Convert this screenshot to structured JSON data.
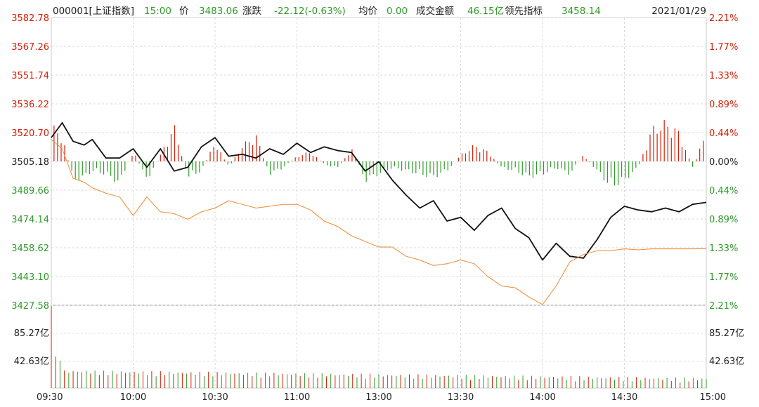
{
  "header": {
    "code": "000001[上证指数]",
    "time": "15:00",
    "price_label": "价",
    "price": "3483.06",
    "change_label": "涨跌",
    "change": "-22.12(-0.63%)",
    "avg_label": "均价",
    "avg": "0.00",
    "turnover_label": "成交金额",
    "turnover": "46.15亿",
    "lead_label": "领先指标",
    "lead": "3458.14",
    "date": "2021/01/29"
  },
  "chart_data": {
    "type": "line",
    "title": "000001[上证指数]",
    "prev_close": 3505.18,
    "ylim": [
      3427.58,
      3582.78
    ],
    "left_ticks": [
      "3582.78",
      "3567.26",
      "3551.74",
      "3536.22",
      "3520.70",
      "3505.18",
      "3489.66",
      "3474.14",
      "3458.62",
      "3443.10",
      "3427.58"
    ],
    "left_tick_colors": [
      "red",
      "red",
      "red",
      "red",
      "red",
      "black",
      "green",
      "green",
      "green",
      "green",
      "green"
    ],
    "right_ticks": [
      "2.21%",
      "1.77%",
      "1.33%",
      "0.89%",
      "0.44%",
      "0.00%",
      "0.44%",
      "0.89%",
      "1.33%",
      "1.77%",
      "2.21%"
    ],
    "right_tick_colors": [
      "red",
      "red",
      "red",
      "red",
      "red",
      "black",
      "green",
      "green",
      "green",
      "green",
      "green"
    ],
    "volume_ticks": [
      "85.27亿",
      "42.63亿"
    ],
    "volume_ylim": [
      0,
      127.9
    ],
    "time_labels": [
      "09:30",
      "10:00",
      "10:30",
      "11:00",
      "13:00",
      "13:30",
      "14:00",
      "14:30",
      "15:00"
    ],
    "series": [
      {
        "name": "价",
        "color": "#111111",
        "x": [
          0,
          4,
          8,
          12,
          15,
          20,
          25,
          30,
          35,
          40,
          45,
          50,
          55,
          60,
          65,
          70,
          75,
          80,
          85,
          90,
          95,
          100,
          105,
          110,
          115,
          120,
          125,
          130,
          135,
          140,
          145,
          150,
          155,
          160,
          165,
          170,
          175,
          180,
          185,
          190,
          195,
          200,
          205,
          210,
          215,
          220,
          225,
          230,
          235,
          240
        ],
        "y": [
          3518,
          3526,
          3516,
          3514,
          3517,
          3507,
          3507,
          3512,
          3502,
          3512,
          3500,
          3502,
          3513,
          3518,
          3508,
          3509,
          3507,
          3512,
          3509,
          3515,
          3510,
          3513,
          3511,
          3510,
          3500,
          3505,
          3495,
          3487,
          3480,
          3484,
          3473,
          3475,
          3468,
          3476,
          3480,
          3469,
          3464,
          3452,
          3461,
          3454,
          3453,
          3463,
          3475,
          3481,
          3479,
          3478,
          3480,
          3478,
          3482,
          3483.06
        ]
      },
      {
        "name": "领先指标",
        "color": "#ee8a32",
        "x": [
          0,
          4,
          8,
          12,
          15,
          20,
          25,
          30,
          35,
          40,
          45,
          50,
          55,
          60,
          65,
          70,
          75,
          80,
          85,
          90,
          95,
          100,
          105,
          110,
          115,
          120,
          125,
          130,
          135,
          140,
          145,
          150,
          155,
          160,
          165,
          170,
          175,
          180,
          185,
          190,
          195,
          200,
          205,
          210,
          215,
          220,
          225,
          230,
          235,
          240
        ],
        "y": [
          3517,
          3512,
          3496,
          3494,
          3491,
          3488,
          3486,
          3476,
          3486,
          3478,
          3477,
          3474,
          3478,
          3480,
          3484,
          3482,
          3480,
          3481,
          3482,
          3482,
          3479,
          3473,
          3470,
          3465,
          3462,
          3459,
          3459,
          3454,
          3452,
          3449,
          3450,
          3452,
          3450,
          3443,
          3438,
          3437,
          3432,
          3428,
          3438,
          3451,
          3455,
          3457,
          3457,
          3458,
          3457.5,
          3458,
          3458,
          3458,
          3458,
          3458.14
        ]
      }
    ],
    "lead_bars_x": [
      0,
      4,
      8,
      12,
      15,
      20,
      25,
      30,
      35,
      40,
      45,
      50,
      55,
      60,
      65,
      70,
      75,
      80,
      85,
      90,
      95,
      100,
      105,
      110,
      115,
      120,
      125,
      130,
      135,
      140,
      145,
      150,
      155,
      160,
      165,
      170,
      175,
      180,
      185,
      190,
      195,
      200,
      205,
      210,
      215,
      220,
      225,
      230,
      235,
      240
    ],
    "lead_bars": [
      55,
      40,
      -30,
      -25,
      -15,
      -20,
      -35,
      18,
      -30,
      10,
      55,
      -25,
      -15,
      30,
      -10,
      25,
      40,
      -20,
      -10,
      8,
      15,
      -5,
      -10,
      20,
      -30,
      -20,
      -10,
      -15,
      -20,
      -25,
      -15,
      10,
      25,
      15,
      -10,
      -15,
      -25,
      -20,
      -10,
      -20,
      10,
      -15,
      -40,
      -30,
      -10,
      50,
      60,
      45,
      -10,
      45
    ]
  }
}
